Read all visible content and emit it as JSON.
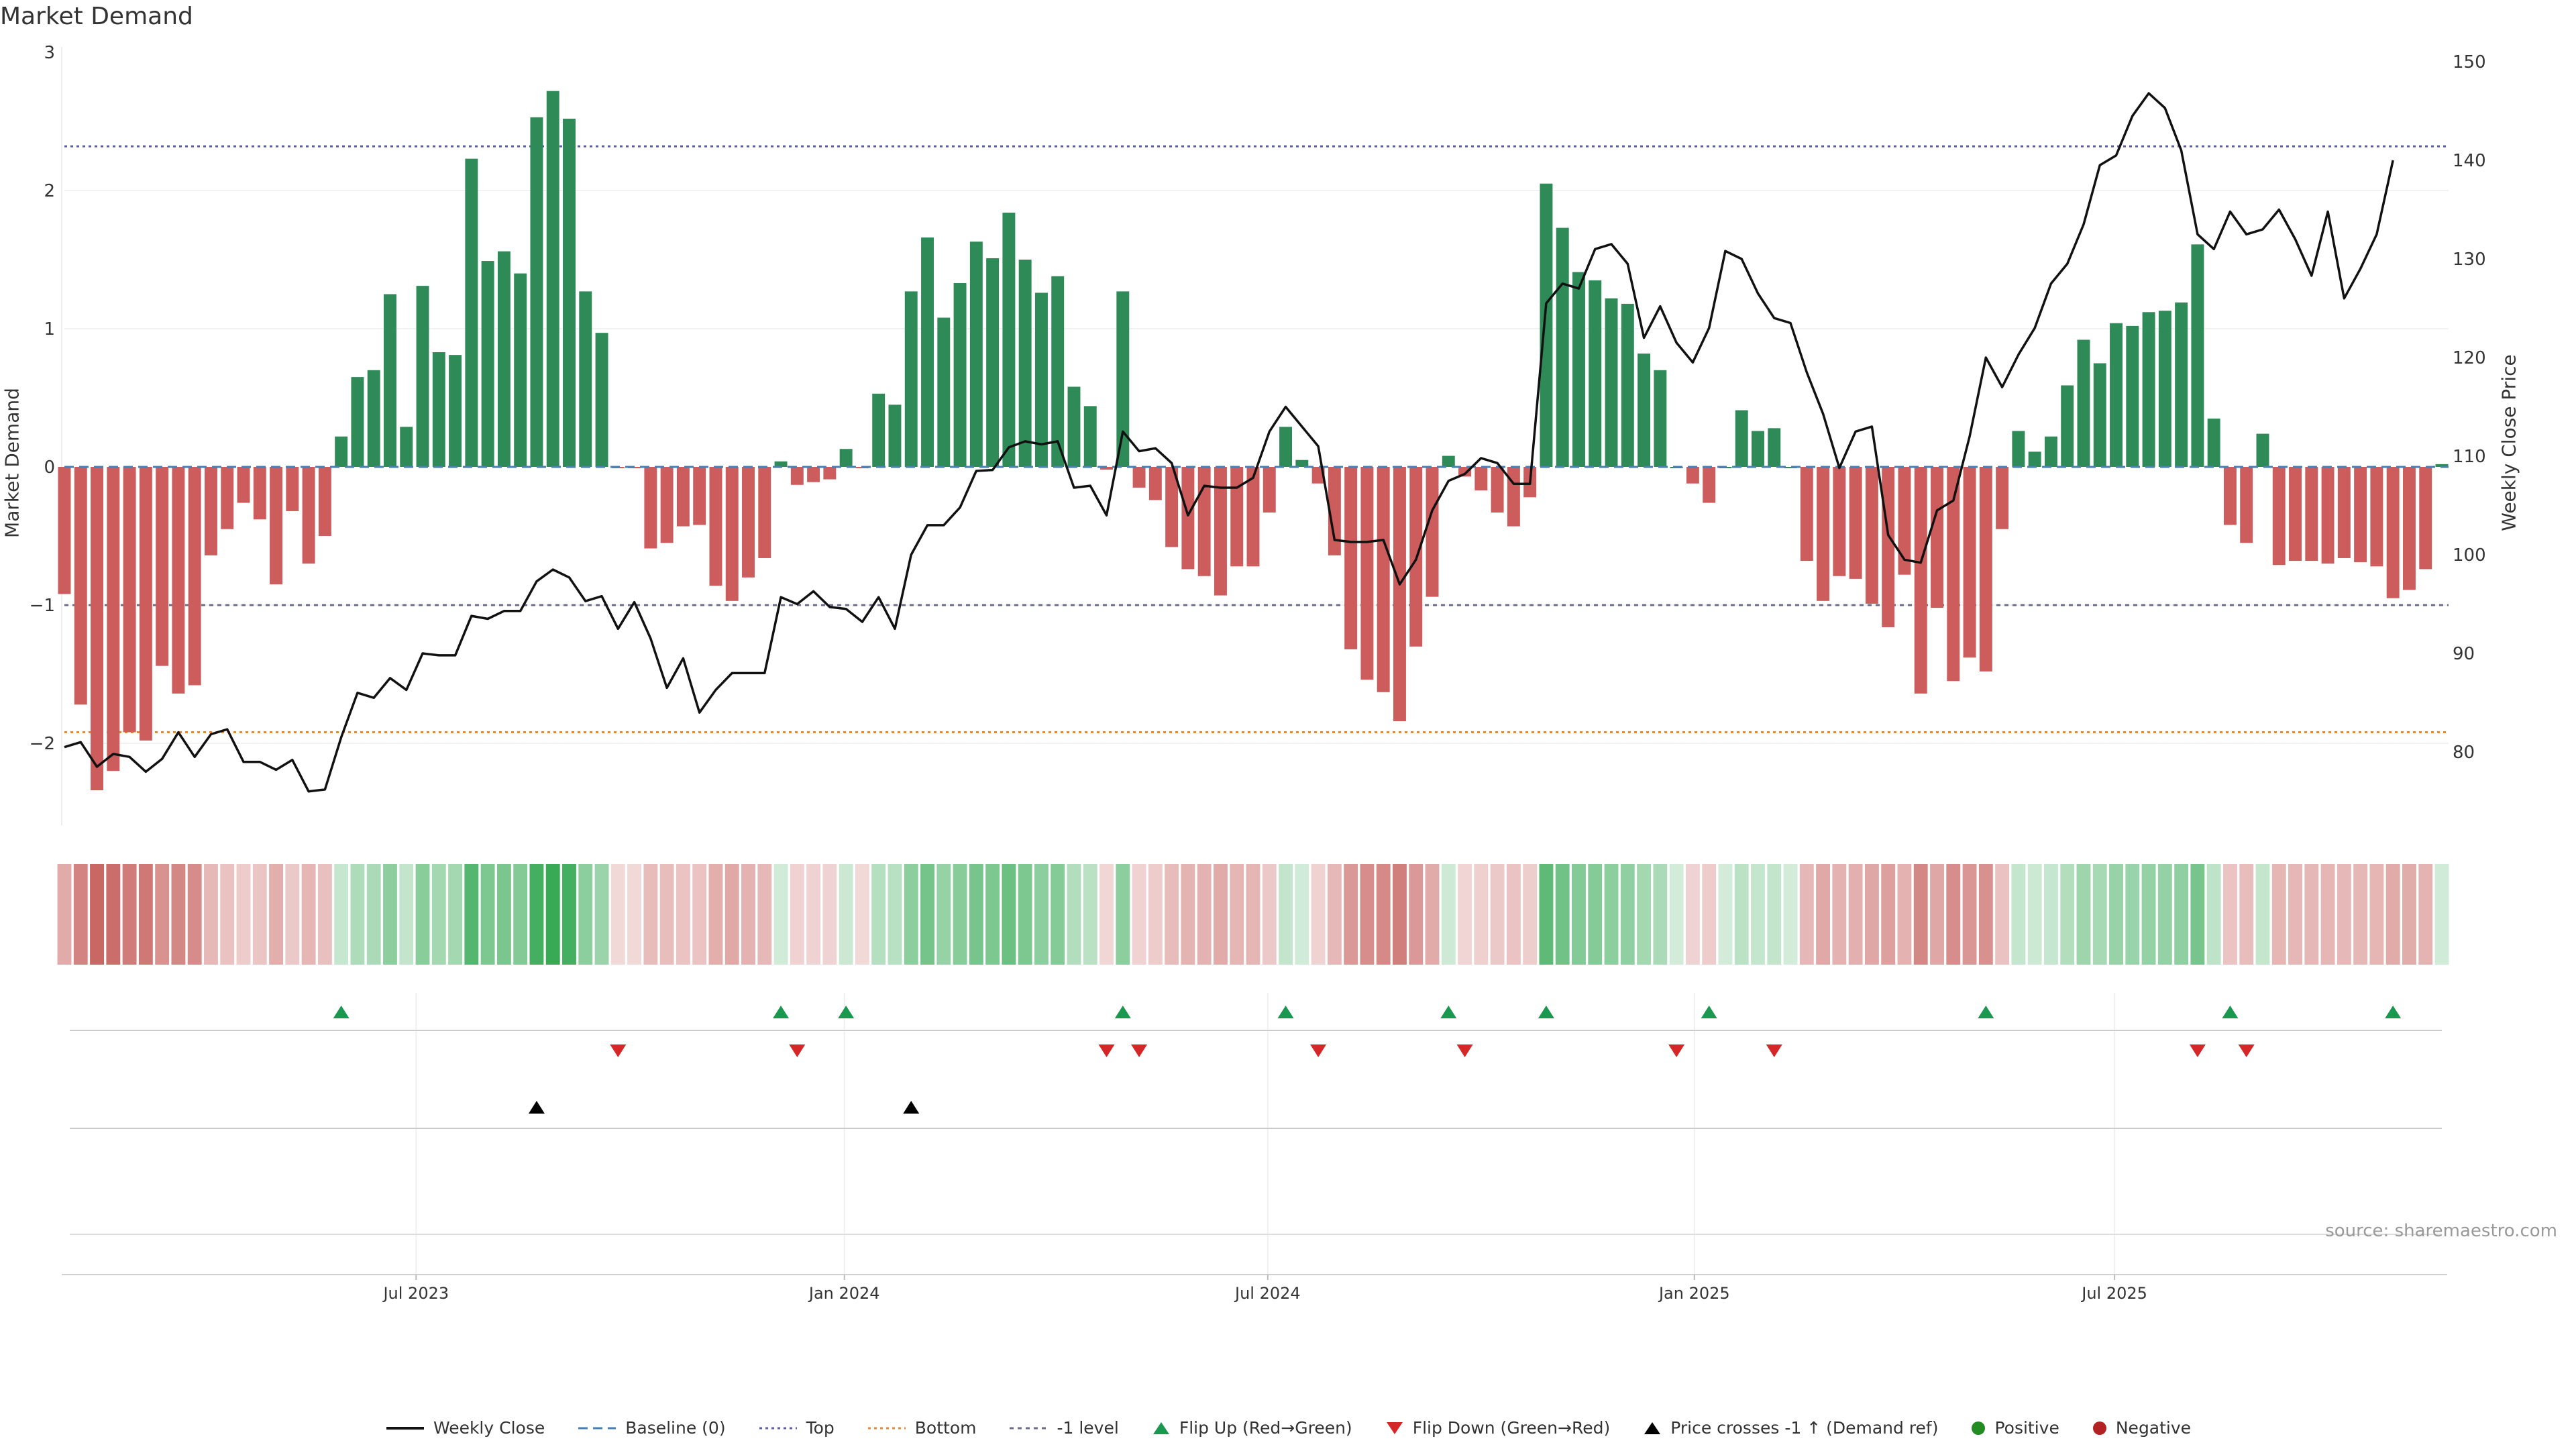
{
  "title": "Market Demand",
  "credit": "source: sharemaestro.com",
  "colors": {
    "positive": "#2e8b57",
    "negative": "#cd5c5c",
    "line": "#111111",
    "top": "#5b5ea6",
    "bottom": "#e08a3c",
    "minus1": "#6c6c8a",
    "flip_up": "#1a9850",
    "flip_down": "#d62728",
    "cross": "#000000"
  },
  "chart_data": {
    "type": "bar+line",
    "title": "Market Demand",
    "ylabel_left": "Market Demand",
    "ylabel_right": "Weekly Close Price",
    "ylim_left": [
      -2.6,
      3
    ],
    "ylim_right": [
      70,
      150
    ],
    "yticks_left": [
      "3",
      "2",
      "1",
      "0",
      "−1",
      "−2"
    ],
    "yticks_right": [
      "150",
      "140",
      "130",
      "120",
      "110",
      "100",
      "90",
      "80"
    ],
    "x_ticks": [
      "Jul 2023",
      "Jan 2024",
      "Jul 2024",
      "Jan 2025",
      "Jul 2025"
    ],
    "x_tick_weeks": [
      21.6,
      47.9,
      73.9,
      100.1,
      125.9
    ],
    "ref_lines": {
      "top": 2.32,
      "bottom": -1.92,
      "minus1": -1.0,
      "baseline": 0
    },
    "demand": [
      -0.92,
      -1.72,
      -2.34,
      -2.2,
      -1.92,
      -1.98,
      -1.44,
      -1.64,
      -1.58,
      -0.64,
      -0.45,
      -0.26,
      -0.38,
      -0.85,
      -0.32,
      -0.7,
      -0.5,
      0.22,
      0.65,
      0.7,
      1.25,
      0.29,
      1.31,
      0.83,
      0.81,
      2.23,
      1.49,
      1.56,
      1.4,
      2.53,
      2.72,
      2.52,
      1.27,
      0.97,
      -0.01,
      -0.01,
      -0.59,
      -0.55,
      -0.43,
      -0.42,
      -0.86,
      -0.97,
      -0.8,
      -0.66,
      0.04,
      -0.13,
      -0.11,
      -0.09,
      0.13,
      -0.01,
      0.53,
      0.45,
      1.27,
      1.66,
      1.08,
      1.33,
      1.63,
      1.51,
      1.84,
      1.5,
      1.26,
      1.38,
      0.58,
      0.44,
      -0.02,
      1.27,
      -0.15,
      -0.24,
      -0.58,
      -0.74,
      -0.79,
      -0.93,
      -0.72,
      -0.72,
      -0.33,
      0.29,
      0.05,
      -0.12,
      -0.64,
      -1.32,
      -1.54,
      -1.63,
      -1.84,
      -1.3,
      -0.94,
      0.08,
      -0.07,
      -0.17,
      -0.33,
      -0.43,
      -0.22,
      2.05,
      1.73,
      1.41,
      1.35,
      1.22,
      1.18,
      0.82,
      0.7,
      0.0,
      -0.12,
      -0.26,
      0.0,
      0.41,
      0.26,
      0.28,
      0.0,
      -0.68,
      -0.97,
      -0.79,
      -0.81,
      -0.99,
      -1.16,
      -0.78,
      -1.64,
      -1.02,
      -1.55,
      -1.38,
      -1.48,
      -0.45,
      0.26,
      0.11,
      0.22,
      0.59,
      0.92,
      0.75,
      1.04,
      1.02,
      1.12,
      1.13,
      1.19,
      1.61,
      0.35,
      -0.42,
      -0.55,
      0.24,
      -0.71,
      -0.68,
      -0.68,
      -0.7,
      -0.66,
      -0.69,
      -0.72,
      -0.95,
      -0.89,
      -0.74,
      0.02
    ],
    "weekly_close": [
      80.5,
      81.0,
      78.5,
      79.8,
      79.5,
      78.0,
      79.3,
      82.0,
      79.5,
      81.8,
      82.3,
      79.0,
      79.0,
      78.2,
      79.2,
      76.0,
      76.2,
      81.5,
      86.0,
      85.5,
      87.5,
      86.3,
      90.0,
      89.8,
      89.8,
      93.8,
      93.5,
      94.3,
      94.3,
      97.3,
      98.5,
      97.7,
      95.3,
      95.8,
      92.5,
      95.2,
      91.5,
      86.5,
      89.5,
      84.0,
      86.3,
      88.0,
      88.0,
      88.0,
      95.7,
      95.0,
      96.3,
      94.7,
      94.5,
      93.2,
      95.7,
      92.5,
      100.0,
      103.0,
      103.0,
      104.8,
      108.5,
      108.6,
      110.9,
      111.5,
      111.2,
      111.5,
      106.8,
      107.0,
      104.0,
      112.5,
      110.5,
      110.8,
      109.3,
      104.0,
      107.0,
      106.8,
      106.8,
      107.8,
      112.5,
      115.0,
      113.0,
      111.0,
      101.5,
      101.3,
      101.3,
      101.5,
      97.0,
      99.5,
      104.5,
      107.5,
      108.2,
      109.8,
      109.3,
      107.2,
      107.2,
      125.5,
      127.5,
      127.0,
      131.0,
      131.5,
      129.5,
      122.0,
      125.2,
      121.5,
      119.5,
      123.0,
      130.8,
      130.0,
      126.5,
      124.0,
      123.5,
      118.5,
      114.3,
      108.8,
      112.5,
      113.0,
      102.0,
      99.5,
      99.2,
      104.5,
      105.5,
      112.0,
      120.0,
      117.0,
      120.3,
      123.0,
      127.5,
      129.5,
      133.5,
      139.5,
      140.5,
      144.5,
      146.8,
      145.3,
      141.0,
      132.5,
      131.0,
      134.8,
      132.5,
      133.0,
      135.0,
      132.0,
      128.3,
      134.8,
      126.0,
      129.0,
      132.5,
      140.0
    ]
  },
  "events": {
    "flip_up": [
      17,
      44,
      48,
      65,
      75,
      85,
      91,
      101,
      118,
      133,
      143
    ],
    "flip_down": [
      34,
      45,
      64,
      66,
      77,
      86,
      99,
      105,
      131,
      134
    ],
    "price_crosses_up": [
      29,
      52
    ]
  },
  "legend": [
    {
      "label": "Weekly Close",
      "icon": "solid-line"
    },
    {
      "label": "Baseline (0)",
      "icon": "dashed-line"
    },
    {
      "label": "Top",
      "icon": "dotted-line-top"
    },
    {
      "label": "Bottom",
      "icon": "dotted-line-bottom"
    },
    {
      "label": "-1 level",
      "icon": "dotted-line-minus1"
    },
    {
      "label": "Flip Up (Red→Green)",
      "icon": "triangle-up-green"
    },
    {
      "label": "Flip Down (Green→Red)",
      "icon": "triangle-down-red"
    },
    {
      "label": "Price crosses -1 ↑ (Demand ref)",
      "icon": "triangle-up-black"
    },
    {
      "label": "Positive",
      "icon": "dot-green"
    },
    {
      "label": "Negative",
      "icon": "dot-red"
    }
  ]
}
